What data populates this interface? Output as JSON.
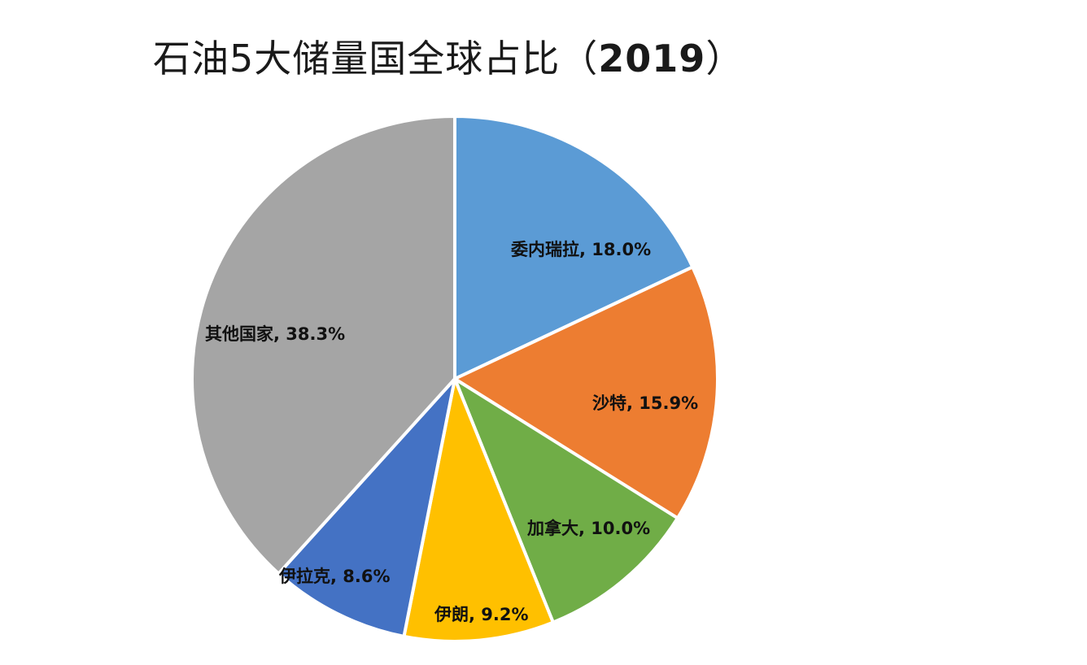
{
  "chart_data": {
    "type": "pie",
    "title": "石油5大储量国全球占比（2019）",
    "categories": [
      "委内瑞拉",
      "沙特",
      "加拿大",
      "伊朗",
      "伊拉克",
      "其他国家"
    ],
    "values": [
      18.0,
      15.9,
      10.0,
      9.2,
      8.6,
      38.3
    ],
    "unit": "%",
    "colors": [
      "#5B9BD5",
      "#ED7D31",
      "#70AD47",
      "#FFC000",
      "#4472C4",
      "#A5A5A5"
    ],
    "labels": [
      "委内瑞拉, 18.0%",
      "沙特, 15.9%",
      "加拿大, 10.0%",
      "伊朗, 9.2%",
      "伊拉克, 8.6%",
      "其他国家, 38.3%"
    ],
    "start_angle_deg": 0,
    "direction": "clockwise",
    "legend": "none"
  },
  "title": {
    "main": "石油5大储量国全球占比（",
    "year": "2019",
    "close": "）"
  }
}
